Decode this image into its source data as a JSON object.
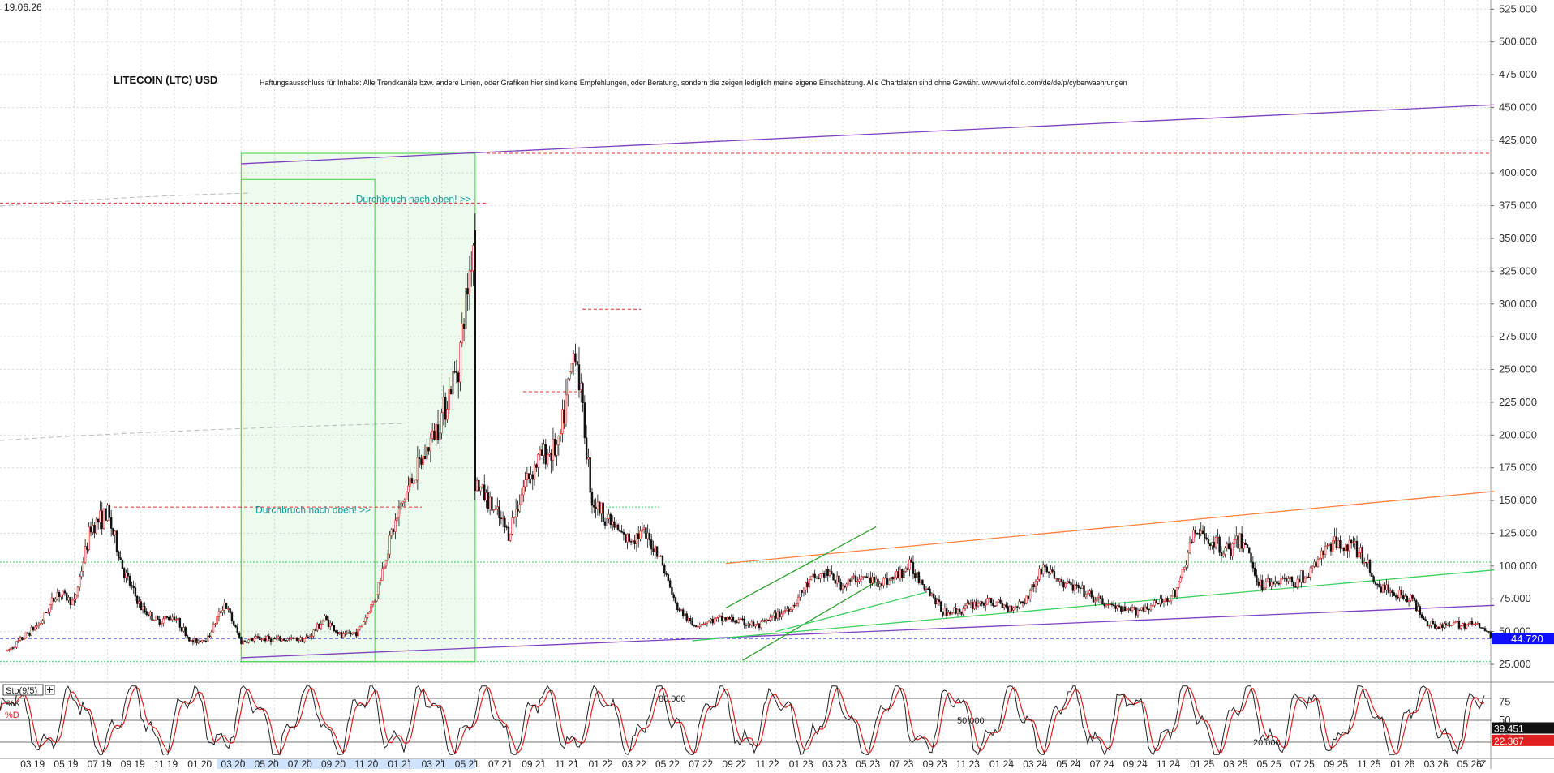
{
  "chart_data": [
    {
      "type": "candlestick",
      "date_stamp": "19.06.26",
      "title": "LITECOIN (LTC) USD",
      "disclaimer": "Haftungsausschluss für Inhalte: Alle Trendkanäle bzw. andere Linien, oder Grafiken hier sind keine Empfehlungen, oder Beratung, sondern die zeigen lediglich meine eigene Einschätzung. Alle Chartdaten sind ohne Gewähr.  www.wikifolio.com/de/de/p/cyberwaehrungen",
      "y_axis": {
        "ylim": [
          12,
          532
        ],
        "ticks": [
          "25.000",
          "50.000",
          "75.000",
          "100.000",
          "125.000",
          "150.000",
          "175.000",
          "200.000",
          "225.000",
          "250.000",
          "275.000",
          "300.000",
          "325.000",
          "350.000",
          "375.000",
          "400.000",
          "425.000",
          "450.000",
          "475.000",
          "500.000",
          "525.000"
        ],
        "tick_values": [
          25,
          50,
          75,
          100,
          125,
          150,
          175,
          200,
          225,
          250,
          275,
          300,
          325,
          350,
          375,
          400,
          425,
          450,
          475,
          500,
          525
        ],
        "last_price_label": "44.720",
        "last_price": 44.72,
        "grid": true,
        "position": "right"
      },
      "x_axis": {
        "ticks": [
          "03 19",
          "05 19",
          "07 19",
          "09 19",
          "11 19",
          "01 20",
          "03 20",
          "05 20",
          "07 20",
          "09 20",
          "11 20",
          "01 21",
          "03 21",
          "05 21",
          "07 21",
          "09 21",
          "11 21",
          "01 22",
          "03 22",
          "05 22",
          "07 22",
          "09 22",
          "11 22",
          "01 23",
          "03 23",
          "05 23",
          "07 23",
          "09 23",
          "11 23",
          "01 24",
          "03 24",
          "05 24",
          "07 24",
          "09 24",
          "11 24",
          "01 25",
          "03 25",
          "05 25",
          "07 25",
          "09 25",
          "11 25",
          "01 26",
          "03 26",
          "05 26"
        ],
        "range": [
          "01 19",
          "06 26"
        ],
        "end_marker": "Z"
      },
      "price_path": [
        [
          "01 19",
          35
        ],
        [
          "03 19",
          57
        ],
        [
          "04 19",
          80
        ],
        [
          "05 19",
          72
        ],
        [
          "06 19",
          130
        ],
        [
          "07 19",
          140
        ],
        [
          "08 19",
          95
        ],
        [
          "09 19",
          68
        ],
        [
          "10 19",
          58
        ],
        [
          "11 19",
          62
        ],
        [
          "12 19",
          42
        ],
        [
          "01 20",
          45
        ],
        [
          "02 20",
          72
        ],
        [
          "03 20",
          42
        ],
        [
          "04 20",
          45
        ],
        [
          "05 20",
          44
        ],
        [
          "06 20",
          44
        ],
        [
          "07 20",
          45
        ],
        [
          "08 20",
          60
        ],
        [
          "09 20",
          46
        ],
        [
          "10 20",
          50
        ],
        [
          "11 20",
          75
        ],
        [
          "12 20",
          125
        ],
        [
          "01 21",
          160
        ],
        [
          "02 21",
          185
        ],
        [
          "03 21",
          215
        ],
        [
          "04 21",
          255
        ],
        [
          "05 21",
          360
        ],
        [
          "05 21",
          165
        ],
        [
          "06 21",
          145
        ],
        [
          "07 21",
          125
        ],
        [
          "08 21",
          165
        ],
        [
          "09 21",
          185
        ],
        [
          "10 21",
          190
        ],
        [
          "11 21",
          270
        ],
        [
          "12 21",
          150
        ],
        [
          "01 22",
          135
        ],
        [
          "02 22",
          120
        ],
        [
          "03 22",
          125
        ],
        [
          "04 22",
          110
        ],
        [
          "05 22",
          70
        ],
        [
          "06 22",
          55
        ],
        [
          "07 22",
          58
        ],
        [
          "08 22",
          60
        ],
        [
          "09 22",
          57
        ],
        [
          "10 22",
          54
        ],
        [
          "11 22",
          62
        ],
        [
          "12 22",
          70
        ],
        [
          "01 23",
          88
        ],
        [
          "02 23",
          95
        ],
        [
          "03 23",
          85
        ],
        [
          "04 23",
          92
        ],
        [
          "05 23",
          88
        ],
        [
          "06 23",
          90
        ],
        [
          "07 23",
          100
        ],
        [
          "08 23",
          85
        ],
        [
          "09 23",
          65
        ],
        [
          "10 23",
          66
        ],
        [
          "11 23",
          72
        ],
        [
          "12 23",
          72
        ],
        [
          "01 24",
          68
        ],
        [
          "02 24",
          75
        ],
        [
          "03 24",
          100
        ],
        [
          "04 24",
          88
        ],
        [
          "05 24",
          83
        ],
        [
          "06 24",
          75
        ],
        [
          "07 24",
          70
        ],
        [
          "08 24",
          65
        ],
        [
          "09 24",
          68
        ],
        [
          "10 24",
          72
        ],
        [
          "11 24",
          80
        ],
        [
          "12 24",
          125
        ],
        [
          "01 25",
          120
        ],
        [
          "02 25",
          112
        ],
        [
          "03 25",
          120
        ],
        [
          "04 25",
          85
        ],
        [
          "05 25",
          90
        ],
        [
          "06 25",
          88
        ],
        [
          "07 25",
          95
        ],
        [
          "08 25",
          115
        ],
        [
          "09 25",
          118
        ],
        [
          "10 25",
          110
        ],
        [
          "11 25",
          85
        ],
        [
          "12 25",
          80
        ],
        [
          "01 26",
          75
        ],
        [
          "02 26",
          57
        ],
        [
          "03 26",
          54
        ],
        [
          "04 26",
          56
        ],
        [
          "05 26",
          55
        ],
        [
          "06 26",
          44.72
        ]
      ],
      "annotations": [
        {
          "text": "Durchbruch nach oben! >>",
          "date": "05 21",
          "value": 380
        },
        {
          "text": "Durchbruch nach oben! >>",
          "date": "11 20",
          "value": 143
        }
      ],
      "overlay_lines": [
        {
          "color": "#7f3fbf",
          "from": [
            "03 20",
            407
          ],
          "to": [
            "06 26",
            452
          ]
        },
        {
          "color": "#7f3fbf",
          "from": [
            "03 20",
            30
          ],
          "to": [
            "06 26",
            70
          ]
        },
        {
          "color": "#3cd060",
          "from": [
            "06 22",
            43
          ],
          "to": [
            "06 26",
            97
          ]
        },
        {
          "color": "#ff7f3f",
          "from": [
            "08 22",
            102
          ],
          "to": [
            "06 26",
            157
          ]
        },
        {
          "color": "#2da02d",
          "from": [
            "08 22",
            68
          ],
          "to": [
            "05 23",
            130
          ]
        },
        {
          "color": "#2da02d",
          "from": [
            "09 22",
            28
          ],
          "to": [
            "05 23",
            88
          ]
        },
        {
          "color": "#3cd060",
          "from": [
            "11 22",
            50
          ],
          "to": [
            "08 23",
            80
          ]
        }
      ],
      "horizontal_levels": [
        {
          "value": 415,
          "color": "#e03030",
          "style": "dashed"
        },
        {
          "value": 377,
          "color": "#e03030",
          "style": "dashed"
        },
        {
          "value": 145,
          "color": "#e03030",
          "style": "dashed"
        },
        {
          "value": 233,
          "color": "#e03030",
          "style": "dashed"
        },
        {
          "value": 296,
          "color": "#e03030",
          "style": "dashed"
        },
        {
          "value": 44.72,
          "color": "#3030e0",
          "style": "dashed"
        },
        {
          "value": 103,
          "color": "#3cd060",
          "style": "dotted"
        },
        {
          "value": 27,
          "color": "#3cd060",
          "style": "dotted"
        }
      ],
      "highlight_boxes": [
        {
          "from": "03 20",
          "to": "05 21",
          "low": 27,
          "high": 415
        },
        {
          "from": "03 20",
          "to": "11 20",
          "low": 27,
          "high": 395
        }
      ]
    },
    {
      "type": "line",
      "indicator_label": "Sto(9/5)",
      "series": [
        {
          "name": "%K",
          "color": "#222222"
        },
        {
          "name": "%D",
          "color": "#e02020"
        }
      ],
      "levels": [
        {
          "label": "80.000",
          "value": 80
        },
        {
          "label": "50.000",
          "value": 50
        },
        {
          "label": "20.000",
          "value": 20
        }
      ],
      "right_ticks": [
        "75",
        "50",
        "25"
      ],
      "right_tick_values": [
        75,
        50,
        25
      ],
      "last_k_label": "39.451",
      "last_k": 39.451,
      "last_d_label": "22.367",
      "last_d": 22.367,
      "ylim": [
        0,
        100
      ]
    }
  ]
}
